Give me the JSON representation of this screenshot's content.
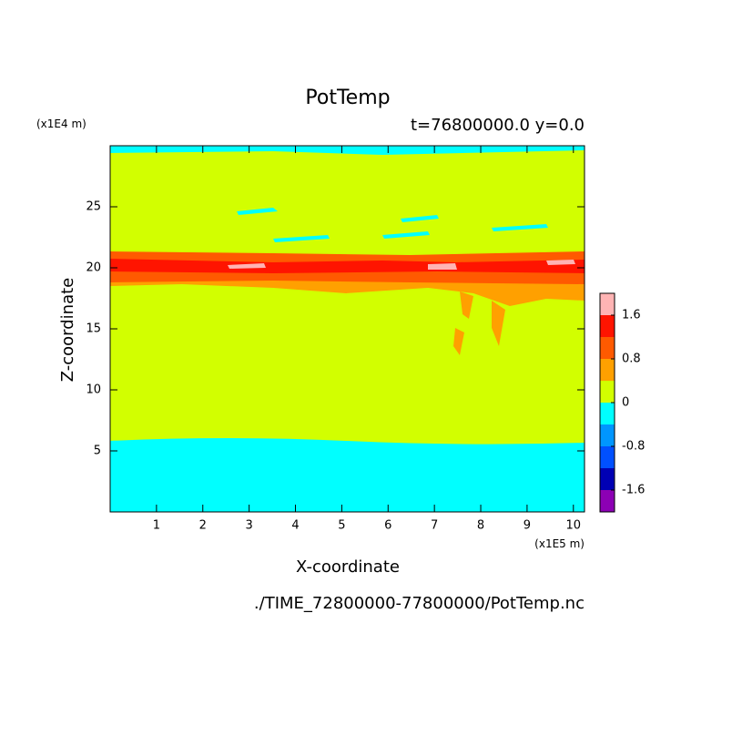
{
  "chart_data": {
    "type": "contour",
    "title": "PotTemp",
    "subtitle": "t=76800000.0 y=0.0",
    "x_label": "X-coordinate",
    "y_label": "Z-coordinate",
    "x_unit": "(x1E5 m)",
    "y_unit": "(x1E4 m)",
    "footer": "./TIME_72800000-77800000/PotTemp.nc",
    "xlim": [
      0,
      10.24
    ],
    "xticks": [
      1,
      2,
      3,
      4,
      5,
      6,
      7,
      8,
      9,
      10
    ],
    "ylim": [
      0,
      30
    ],
    "yticks": [
      5,
      10,
      15,
      20,
      25
    ],
    "colorbar": {
      "clim": [
        -2,
        2
      ],
      "levels": [
        -2,
        -1.6,
        -1.2,
        -0.8,
        -0.4,
        0,
        0.4,
        0.8,
        1.2,
        1.6,
        2
      ],
      "colors": [
        "#8c00b4",
        "#0000b4",
        "#0050ff",
        "#0096ff",
        "#00ffff",
        "#d2ff00",
        "#ffa000",
        "#ff5a00",
        "#ff1400",
        "#ffb4b4"
      ],
      "ticks": [
        -1.6,
        -0.8,
        0,
        0.8,
        1.6
      ]
    }
  }
}
